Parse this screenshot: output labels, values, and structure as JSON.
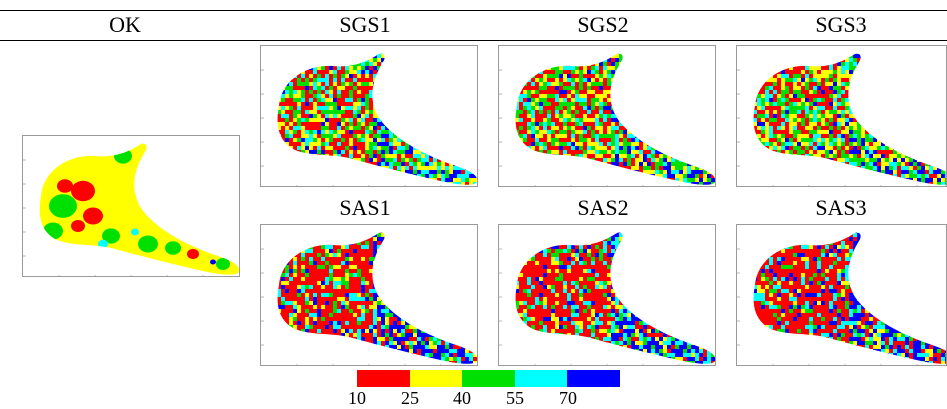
{
  "header": {
    "col_ok": "OK",
    "col_sgs1": "SGS1",
    "col_sgs2": "SGS2",
    "col_sgs3": "SGS3"
  },
  "row2": {
    "sas1": "SAS1",
    "sas2": "SAS2",
    "sas3": "SAS3"
  },
  "legend": {
    "colors": [
      "#ff0000",
      "#ffff00",
      "#00e000",
      "#00ffff",
      "#0000ff"
    ],
    "labels": [
      "10",
      "25",
      "40",
      "55",
      "70"
    ]
  },
  "maps": {
    "ok": {
      "style": "smooth",
      "mix": [
        0.25,
        0.55,
        0.12,
        0.05,
        0.03
      ]
    },
    "sgs1": {
      "style": "noisy",
      "mix": [
        0.25,
        0.25,
        0.22,
        0.16,
        0.12
      ]
    },
    "sgs2": {
      "style": "noisy",
      "mix": [
        0.26,
        0.24,
        0.21,
        0.15,
        0.14
      ]
    },
    "sgs3": {
      "style": "noisy",
      "mix": [
        0.24,
        0.26,
        0.22,
        0.16,
        0.12
      ]
    },
    "sas1": {
      "style": "noisy",
      "mix": [
        0.4,
        0.12,
        0.1,
        0.13,
        0.25
      ]
    },
    "sas2": {
      "style": "noisy",
      "mix": [
        0.38,
        0.12,
        0.12,
        0.13,
        0.25
      ]
    },
    "sas3": {
      "style": "noisy",
      "mix": [
        0.42,
        0.1,
        0.08,
        0.14,
        0.26
      ]
    }
  }
}
